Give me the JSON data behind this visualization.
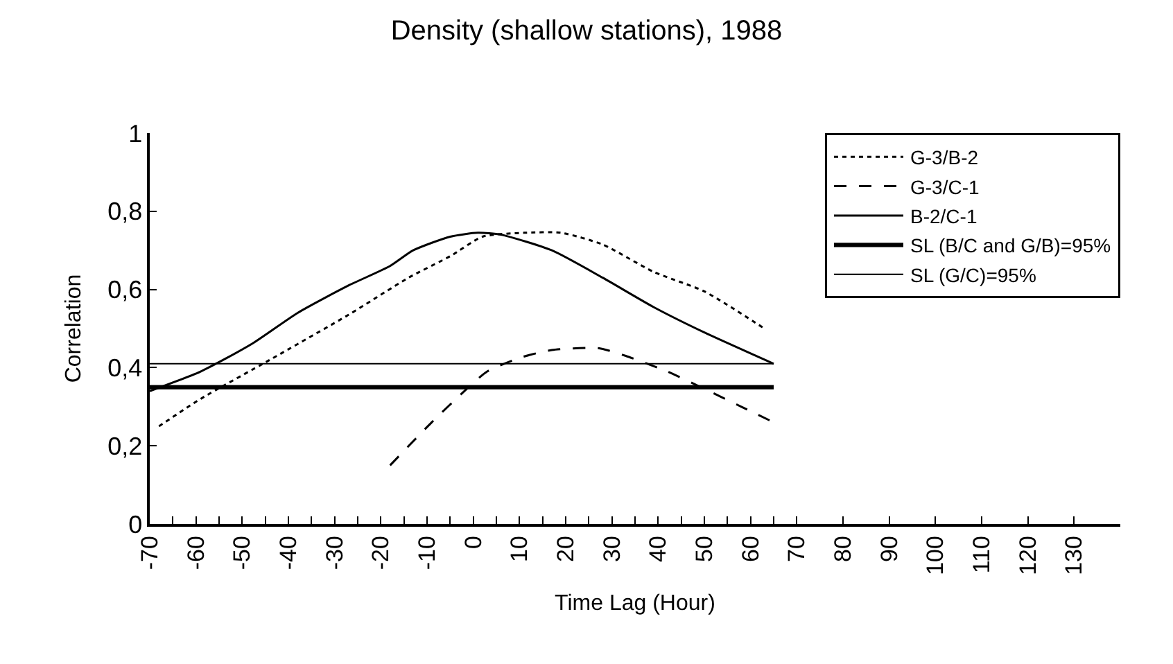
{
  "chart_data": {
    "type": "line",
    "title": "Density (shallow stations), 1988",
    "xlabel": "Time Lag (Hour)",
    "ylabel": "Correlation",
    "xlim": [
      -70,
      140
    ],
    "ylim": [
      0,
      1
    ],
    "xticks": [
      -70,
      {
        "value": -65,
        "label": null
      },
      -60,
      {
        "value": -55,
        "label": null
      },
      -50,
      {
        "value": -45,
        "label": null
      },
      -40,
      {
        "value": -35,
        "label": null
      },
      -30,
      {
        "value": -25,
        "label": null
      },
      -20,
      {
        "value": -15,
        "label": null
      },
      -10,
      {
        "value": -5,
        "label": null
      },
      0,
      {
        "value": 5,
        "label": null
      },
      10,
      {
        "value": 15,
        "label": null
      },
      20,
      {
        "value": 25,
        "label": null
      },
      30,
      {
        "value": 35,
        "label": null
      },
      40,
      {
        "value": 45,
        "label": null
      },
      50,
      {
        "value": 55,
        "label": null
      },
      60,
      {
        "value": 65,
        "label": null
      },
      70,
      80,
      90,
      100,
      110,
      120,
      130
    ],
    "yticks": [
      0,
      {
        "value": 0.2,
        "label": "0,2"
      },
      {
        "value": 0.4,
        "label": "0,4"
      },
      {
        "value": 0.6,
        "label": "0,6"
      },
      {
        "value": 0.8,
        "label": "0,8"
      },
      1
    ],
    "legend": "top right",
    "marker": "none",
    "series": [
      {
        "name": "G-3/B-2",
        "color": "#000000",
        "line_style": "dotted",
        "x": [
          -68,
          -59,
          -44,
          -27,
          -14,
          -5,
          2,
          11,
          19,
          28,
          39,
          50,
          63
        ],
        "values": [
          0.25,
          0.32,
          0.42,
          0.535,
          0.63,
          0.685,
          0.735,
          0.745,
          0.745,
          0.715,
          0.645,
          0.595,
          0.5
        ]
      },
      {
        "name": "G-3/C-1",
        "color": "#000000",
        "line_style": "dashed",
        "x": [
          -18,
          -9,
          -1,
          3,
          10,
          17,
          27,
          33,
          42,
          51,
          58,
          65
        ],
        "values": [
          0.15,
          0.26,
          0.35,
          0.39,
          0.425,
          0.445,
          0.45,
          0.43,
          0.39,
          0.34,
          0.3,
          0.26
        ]
      },
      {
        "name": "B-2/C-1",
        "color": "#000000",
        "line_style": "solid",
        "x": [
          -70,
          -59,
          -48,
          -38,
          -27,
          -18,
          -13,
          -5,
          1,
          6,
          17,
          28,
          39,
          50,
          65
        ],
        "values": [
          0.34,
          0.39,
          0.46,
          0.54,
          0.61,
          0.66,
          0.7,
          0.735,
          0.745,
          0.74,
          0.7,
          0.63,
          0.555,
          0.49,
          0.41
        ]
      },
      {
        "name": "SL (B/C and G/B)=95%",
        "color": "#000000",
        "line_style": "solid",
        "x": [
          -70,
          65
        ],
        "values": [
          0.35,
          0.35
        ]
      },
      {
        "name": "SL (G/C)=95%",
        "color": "#000000",
        "line_style": "solid",
        "x": [
          -70,
          65
        ],
        "values": [
          0.41,
          0.41
        ]
      }
    ]
  }
}
